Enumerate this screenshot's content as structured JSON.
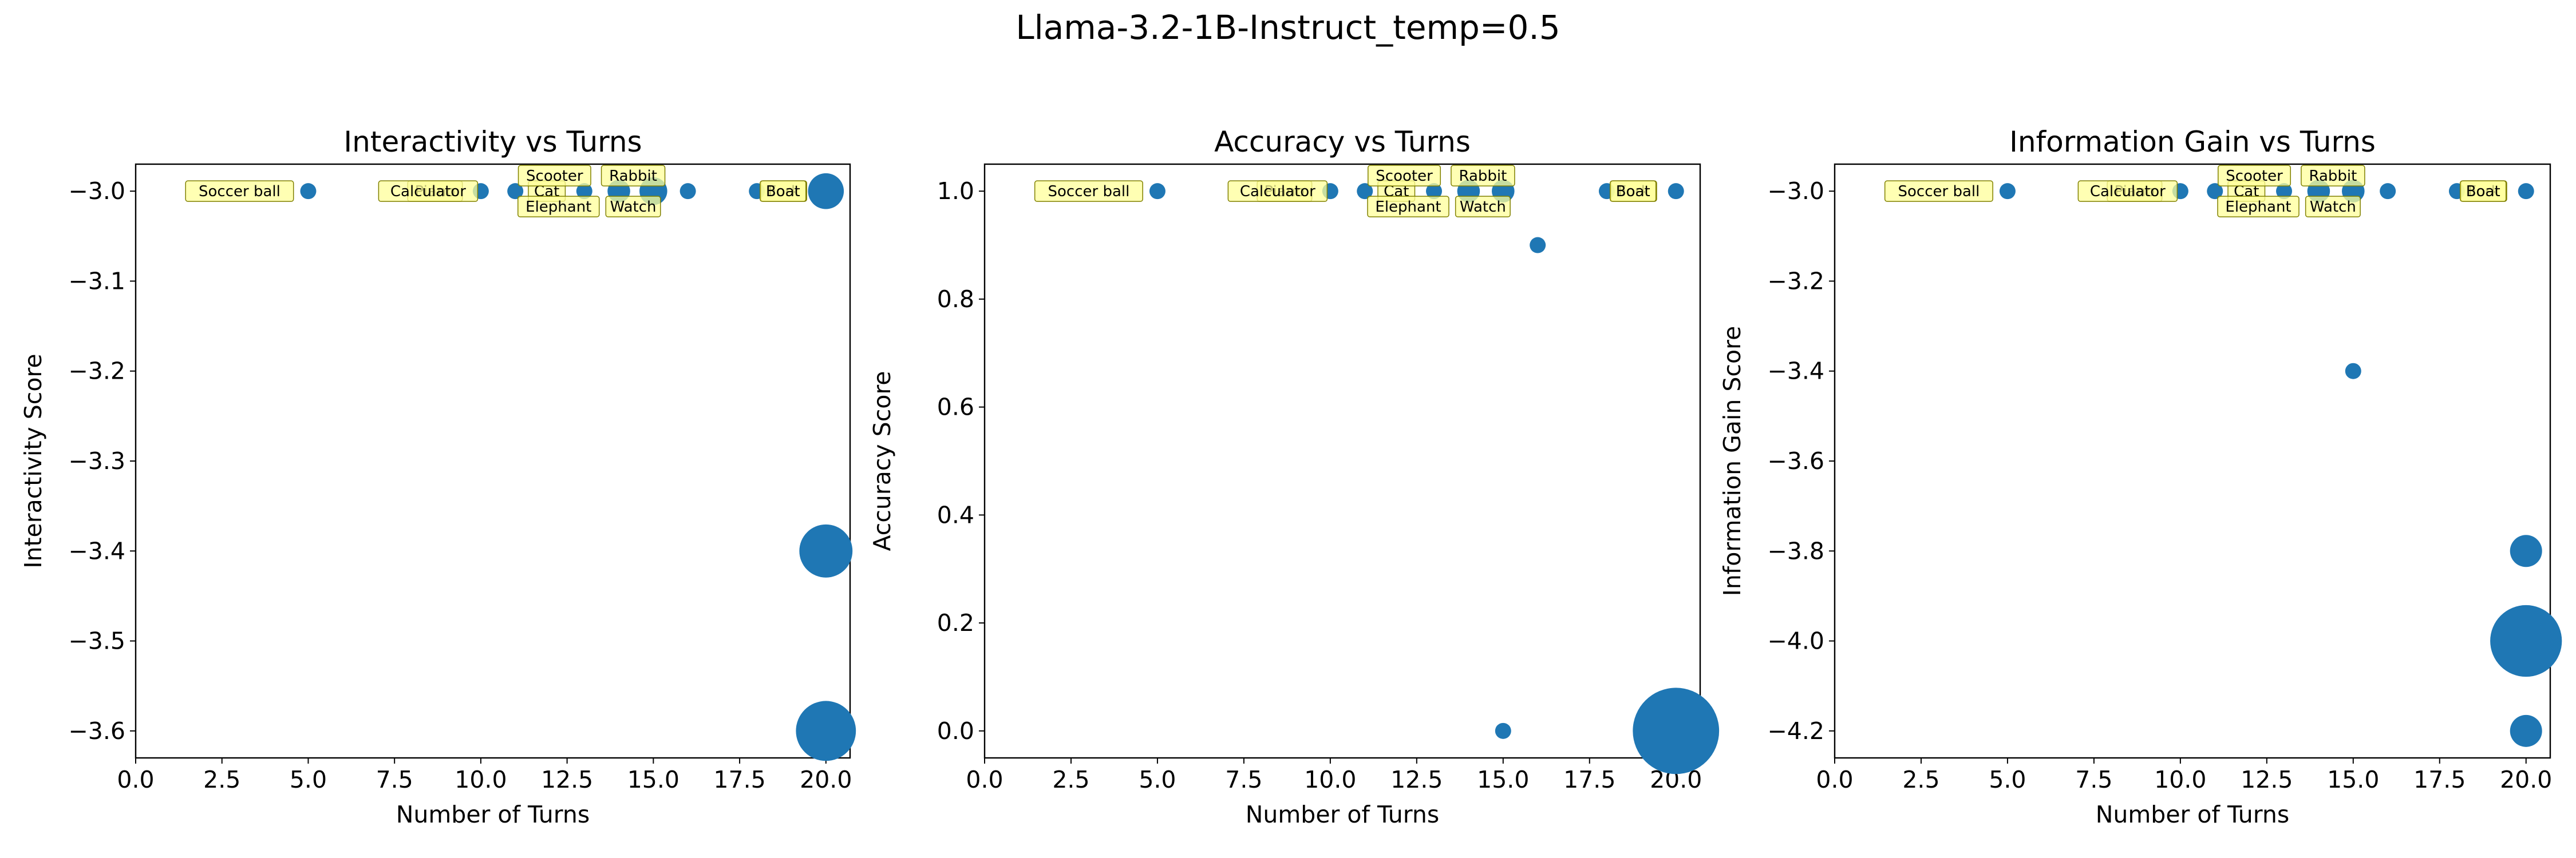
{
  "figure_title": "Llama-3.2-1B-Instruct_temp=0.5",
  "colors": {
    "marker": "#1f77b4",
    "annotation_fill": "#ffff99",
    "annotation_edge": "#808000"
  },
  "chart_data": [
    {
      "type": "scatter",
      "title": "Interactivity vs Turns",
      "xlabel": "Number of Turns",
      "ylabel": "Interactivity Score",
      "xlim": [
        0,
        20.7
      ],
      "ylim": [
        -3.63,
        -2.97
      ],
      "xticks": [
        "0.0",
        "2.5",
        "5.0",
        "7.5",
        "10.0",
        "12.5",
        "15.0",
        "17.5",
        "20.0"
      ],
      "yticks": [
        "−3.0",
        "−3.1",
        "−3.2",
        "−3.3",
        "−3.4",
        "−3.5",
        "−3.6"
      ],
      "points": [
        {
          "x": 5,
          "y": -3.0,
          "count": 1
        },
        {
          "x": 10,
          "y": -3.0,
          "count": 1
        },
        {
          "x": 11,
          "y": -3.0,
          "count": 1
        },
        {
          "x": 13,
          "y": -3.0,
          "count": 1
        },
        {
          "x": 14,
          "y": -3.0,
          "count": 2
        },
        {
          "x": 15,
          "y": -3.0,
          "count": 3
        },
        {
          "x": 16,
          "y": -3.0,
          "count": 1
        },
        {
          "x": 18,
          "y": -3.0,
          "count": 1
        },
        {
          "x": 20,
          "y": -3.0,
          "count": 5
        },
        {
          "x": 20,
          "y": -3.4,
          "count": 11
        },
        {
          "x": 20,
          "y": -3.6,
          "count": 14
        }
      ],
      "annotations": [
        {
          "text": "Soccer ball",
          "x": 5,
          "y": -3.0
        },
        {
          "text": "Piano",
          "x": 10,
          "y": -3.0
        },
        {
          "text": "Calculator",
          "x": 10,
          "y": -3.0
        },
        {
          "text": "Cat",
          "x": 11,
          "y": -3.0
        },
        {
          "text": "Scooter",
          "x": 13,
          "y": -3.0
        },
        {
          "text": "Elephant",
          "x": 13,
          "y": -3.0
        },
        {
          "text": "Rabbit",
          "x": 14,
          "y": -3.0
        },
        {
          "text": "Watch",
          "x": 14,
          "y": -3.0
        },
        {
          "text": "Fork",
          "x": 18,
          "y": -3.0
        },
        {
          "text": "Boat",
          "x": 20,
          "y": -3.0
        }
      ]
    },
    {
      "type": "scatter",
      "title": "Accuracy vs Turns",
      "xlabel": "Number of Turns",
      "ylabel": "Accuracy Score",
      "xlim": [
        0,
        20.7
      ],
      "ylim": [
        -0.05,
        1.05
      ],
      "xticks": [
        "0.0",
        "2.5",
        "5.0",
        "7.5",
        "10.0",
        "12.5",
        "15.0",
        "17.5",
        "20.0"
      ],
      "yticks": [
        "0.0",
        "0.2",
        "0.4",
        "0.6",
        "0.8",
        "1.0"
      ],
      "points": [
        {
          "x": 5,
          "y": 1.0,
          "count": 1
        },
        {
          "x": 10,
          "y": 1.0,
          "count": 1
        },
        {
          "x": 11,
          "y": 1.0,
          "count": 1
        },
        {
          "x": 13,
          "y": 1.0,
          "count": 1
        },
        {
          "x": 14,
          "y": 1.0,
          "count": 2
        },
        {
          "x": 15,
          "y": 1.0,
          "count": 2
        },
        {
          "x": 16,
          "y": 0.9,
          "count": 1
        },
        {
          "x": 15,
          "y": 0.0,
          "count": 1
        },
        {
          "x": 18,
          "y": 1.0,
          "count": 1
        },
        {
          "x": 20,
          "y": 1.0,
          "count": 1
        },
        {
          "x": 20,
          "y": 0.0,
          "count": 29
        }
      ],
      "annotations": [
        {
          "text": "Soccer ball",
          "x": 5,
          "y": 1.0
        },
        {
          "text": "Piano",
          "x": 10,
          "y": 1.0
        },
        {
          "text": "Calculator",
          "x": 10,
          "y": 1.0
        },
        {
          "text": "Cat",
          "x": 11,
          "y": 1.0
        },
        {
          "text": "Scooter",
          "x": 13,
          "y": 1.0
        },
        {
          "text": "Elephant",
          "x": 13,
          "y": 1.0
        },
        {
          "text": "Rabbit",
          "x": 14,
          "y": 1.0
        },
        {
          "text": "Watch",
          "x": 14,
          "y": 1.0
        },
        {
          "text": "Fork",
          "x": 18,
          "y": 1.0
        },
        {
          "text": "Boat",
          "x": 20,
          "y": 1.0
        }
      ]
    },
    {
      "type": "scatter",
      "title": "Information Gain vs Turns",
      "xlabel": "Number of Turns",
      "ylabel": "Information Gain Score",
      "xlim": [
        0,
        20.7
      ],
      "ylim": [
        -4.26,
        -2.94
      ],
      "xticks": [
        "0.0",
        "2.5",
        "5.0",
        "7.5",
        "10.0",
        "12.5",
        "15.0",
        "17.5",
        "20.0"
      ],
      "yticks": [
        "−3.0",
        "−3.2",
        "−3.4",
        "−3.6",
        "−3.8",
        "−4.0",
        "−4.2"
      ],
      "points": [
        {
          "x": 5,
          "y": -3.0,
          "count": 1
        },
        {
          "x": 10,
          "y": -3.0,
          "count": 1
        },
        {
          "x": 11,
          "y": -3.0,
          "count": 1
        },
        {
          "x": 13,
          "y": -3.0,
          "count": 1
        },
        {
          "x": 14,
          "y": -3.0,
          "count": 2
        },
        {
          "x": 15,
          "y": -3.0,
          "count": 2
        },
        {
          "x": 15,
          "y": -3.4,
          "count": 1
        },
        {
          "x": 16,
          "y": -3.0,
          "count": 1
        },
        {
          "x": 18,
          "y": -3.0,
          "count": 1
        },
        {
          "x": 20,
          "y": -3.0,
          "count": 1
        },
        {
          "x": 20,
          "y": -3.8,
          "count": 4
        },
        {
          "x": 20,
          "y": -4.0,
          "count": 20
        },
        {
          "x": 20,
          "y": -4.2,
          "count": 4
        }
      ],
      "annotations": [
        {
          "text": "Soccer ball",
          "x": 5,
          "y": -3.0
        },
        {
          "text": "Piano",
          "x": 10,
          "y": -3.0
        },
        {
          "text": "Calculator",
          "x": 10,
          "y": -3.0
        },
        {
          "text": "Cat",
          "x": 11,
          "y": -3.0
        },
        {
          "text": "Scooter",
          "x": 13,
          "y": -3.0
        },
        {
          "text": "Elephant",
          "x": 13,
          "y": -3.0
        },
        {
          "text": "Rabbit",
          "x": 14,
          "y": -3.0
        },
        {
          "text": "Watch",
          "x": 14,
          "y": -3.0
        },
        {
          "text": "Fork",
          "x": 18,
          "y": -3.0
        },
        {
          "text": "Boat",
          "x": 20,
          "y": -3.0
        }
      ]
    }
  ]
}
